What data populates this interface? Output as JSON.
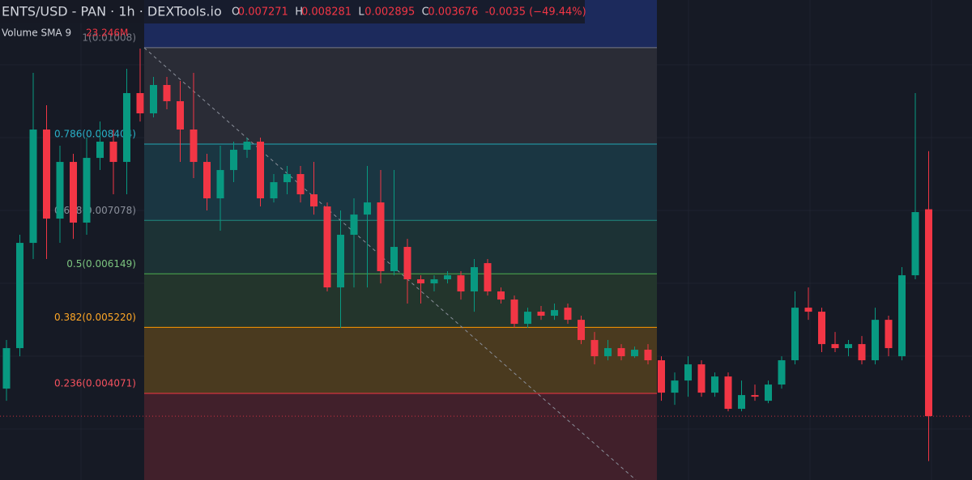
{
  "chart_data": {
    "type": "candlestick",
    "title": "ENTS/USD - PAN · 1h · DEXTools.io",
    "ohlc_labels": [
      "O",
      "H",
      "L",
      "C"
    ],
    "change": "-0.0035 (−49.44%)",
    "volume_label": "Volume SMA 9",
    "volume_value": "23.246M",
    "up_color": "#089981",
    "down_color": "#f23645",
    "ylim": [
      0.002566,
      0.010908
    ],
    "open": [
      0.004154,
      0.004858,
      0.006687,
      0.008657,
      0.007109,
      0.008094,
      0.007039,
      0.008164,
      0.008446,
      0.008094,
      0.00929,
      0.008938,
      0.009431,
      0.009149,
      0.008657,
      0.008094,
      0.007461,
      0.007953,
      0.008305,
      0.008446,
      0.007461,
      0.007742,
      0.007883,
      0.007531,
      0.00732,
      0.005913,
      0.006828,
      0.007179,
      0.00739,
      0.006195,
      0.006617,
      0.006054,
      0.005983,
      0.006054,
      0.006124,
      0.005843,
      0.006335,
      0.005843,
      0.005702,
      0.00528,
      0.005491,
      0.005421,
      0.005561,
      0.00535,
      0.004999,
      0.004717,
      0.004858,
      0.004717,
      0.00483,
      0.004647,
      0.004084,
      0.004295,
      0.004576,
      0.004084,
      0.004365,
      0.003803,
      0.004042,
      0.003943,
      0.004225,
      0.004647,
      0.005561,
      0.005491,
      0.004928,
      0.004858,
      0.004928,
      0.004647,
      0.00535,
      0.004717,
      0.006124,
      0.007271
    ],
    "high": [
      0.004999,
      0.006828,
      0.009642,
      0.009079,
      0.008375,
      0.008235,
      0.008516,
      0.008797,
      0.008657,
      0.009712,
      0.010064,
      0.009571,
      0.009571,
      0.009501,
      0.009642,
      0.008235,
      0.008375,
      0.008446,
      0.008516,
      0.008516,
      0.007883,
      0.008024,
      0.008024,
      0.008094,
      0.00739,
      0.00725,
      0.007461,
      0.008024,
      0.007953,
      0.007953,
      0.006757,
      0.006124,
      0.006124,
      0.006195,
      0.006195,
      0.006406,
      0.006406,
      0.005913,
      0.005772,
      0.005561,
      0.00559,
      0.005632,
      0.005632,
      0.005421,
      0.005139,
      0.004999,
      0.004928,
      0.004886,
      0.004928,
      0.004717,
      0.004436,
      0.004717,
      0.004647,
      0.004436,
      0.004436,
      0.004295,
      0.004225,
      0.004295,
      0.004717,
      0.005843,
      0.005913,
      0.005561,
      0.005139,
      0.004999,
      0.005069,
      0.005561,
      0.005421,
      0.006265,
      0.00929,
      0.008281
    ],
    "low": [
      0.003943,
      0.004717,
      0.006406,
      0.006406,
      0.006687,
      0.006757,
      0.006828,
      0.007953,
      0.007531,
      0.007531,
      0.008797,
      0.008868,
      0.009009,
      0.008094,
      0.007813,
      0.00725,
      0.006898,
      0.007742,
      0.008164,
      0.00732,
      0.00739,
      0.007531,
      0.00739,
      0.007179,
      0.005843,
      0.00521,
      0.005913,
      0.005913,
      0.005983,
      0.006124,
      0.005632,
      0.005632,
      0.005843,
      0.005983,
      0.005702,
      0.005491,
      0.005772,
      0.005632,
      0.00521,
      0.00521,
      0.00535,
      0.00535,
      0.00528,
      0.004928,
      0.004576,
      0.004647,
      0.004647,
      0.004689,
      0.004576,
      0.003943,
      0.003873,
      0.004014,
      0.004014,
      0.004014,
      0.00376,
      0.00376,
      0.003943,
      0.003901,
      0.004154,
      0.004576,
      0.00535,
      0.004788,
      0.004788,
      0.004717,
      0.004576,
      0.004576,
      0.004717,
      0.004647,
      0.006054,
      0.002895
    ],
    "close": [
      0.004858,
      0.006687,
      0.008657,
      0.007109,
      0.008094,
      0.007039,
      0.008164,
      0.008446,
      0.008094,
      0.00929,
      0.008938,
      0.009431,
      0.009149,
      0.008657,
      0.008094,
      0.007461,
      0.007953,
      0.008305,
      0.008446,
      0.007461,
      0.007742,
      0.007883,
      0.007531,
      0.00732,
      0.005913,
      0.006828,
      0.007179,
      0.00739,
      0.006195,
      0.006617,
      0.006054,
      0.005983,
      0.006054,
      0.006124,
      0.005843,
      0.006265,
      0.005843,
      0.005702,
      0.00528,
      0.005491,
      0.005421,
      0.005519,
      0.00535,
      0.004999,
      0.004717,
      0.004858,
      0.004717,
      0.00483,
      0.004647,
      0.004084,
      0.004295,
      0.004576,
      0.004084,
      0.004365,
      0.003803,
      0.004042,
      0.004014,
      0.004225,
      0.004647,
      0.005561,
      0.005491,
      0.004928,
      0.004858,
      0.004928,
      0.004647,
      0.00535,
      0.004858,
      0.006124,
      0.007222,
      0.003676
    ],
    "fib_levels": [
      {
        "label": "1(0.01008)",
        "value": 0.01008,
        "color": "#787b86",
        "text_color": "#787b86",
        "fill": "#2a2c36"
      },
      {
        "label": "0.786(0.008404)",
        "value": 0.008404,
        "color": "#22a6b3",
        "text_color": "#2ab0c8",
        "fill": "#1a3642"
      },
      {
        "label": "0.618(0.007078)",
        "value": 0.007078,
        "color": "#1f8a80",
        "text_color": "#8a8f9a",
        "fill": "#1c3235"
      },
      {
        "label": "0.5(0.006149)",
        "value": 0.006149,
        "color": "#4caf50",
        "text_color": "#7cc47f",
        "fill": "#23352c"
      },
      {
        "label": "0.382(0.005220)",
        "value": 0.00522,
        "color": "#ff9800",
        "text_color": "#ffa726",
        "fill": "#4a3a1f"
      },
      {
        "label": "0.236(0.004071)",
        "value": 0.004071,
        "color": "#f23645",
        "text_color": "#f7525f",
        "fill": "#41202b"
      }
    ]
  }
}
